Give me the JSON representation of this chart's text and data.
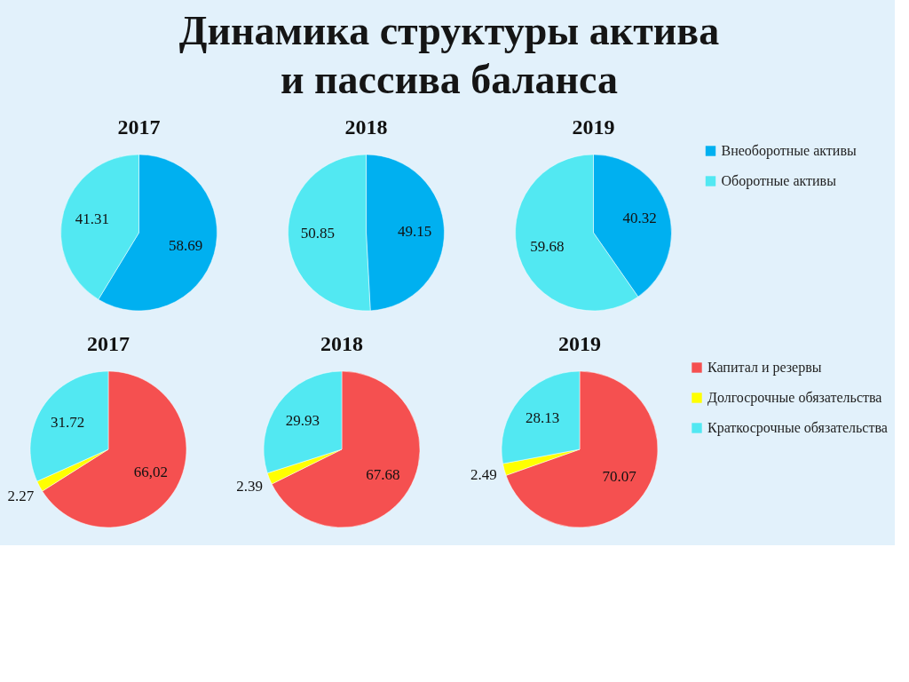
{
  "chart_data": [
    {
      "type": "other",
      "title": "Динамика структуры актива и пассива баланса"
    },
    {
      "type": "pie",
      "title": "2017",
      "categories": [
        null,
        null
      ],
      "values": [
        58.69,
        41.31
      ],
      "colors": [
        "#00b0f0",
        "#52e8f2"
      ],
      "data_labels": true
    },
    {
      "type": "pie",
      "title": "2018",
      "categories": [
        null,
        null
      ],
      "values": [
        49.15,
        50.85
      ],
      "colors": [
        "#00b0f0",
        "#52e8f2"
      ],
      "data_labels": true
    },
    {
      "type": "pie",
      "title": "2019",
      "categories": [
        "Внеоборотные активы",
        "Оборотные активы"
      ],
      "values": [
        40.32,
        59.68
      ],
      "colors": [
        "#00b0f0",
        "#52e8f2"
      ],
      "data_labels": true,
      "legend": "right"
    },
    {
      "type": "pie",
      "title": "2017",
      "categories": [
        null,
        null,
        null
      ],
      "values": [
        66.02,
        2.27,
        31.72
      ],
      "colors": [
        "#f55050",
        "#ffff00",
        "#52e8f2"
      ],
      "value_labels": [
        "66,02",
        "2.27",
        "31.72"
      ]
    },
    {
      "type": "pie",
      "title": "2018",
      "categories": [
        null,
        null,
        null
      ],
      "values": [
        67.68,
        2.39,
        29.93
      ],
      "colors": [
        "#f55050",
        "#ffff00",
        "#52e8f2"
      ],
      "data_labels": true
    },
    {
      "type": "pie",
      "title": "2019",
      "categories": [
        "Капитал и резервы",
        "Долгосрочные обязательства",
        "Краткосрочные обязательства"
      ],
      "values": [
        70.07,
        2.49,
        28.13
      ],
      "colors": [
        "#f55050",
        "#ffff00",
        "#52e8f2"
      ],
      "data_labels": true,
      "legend": "right"
    }
  ]
}
